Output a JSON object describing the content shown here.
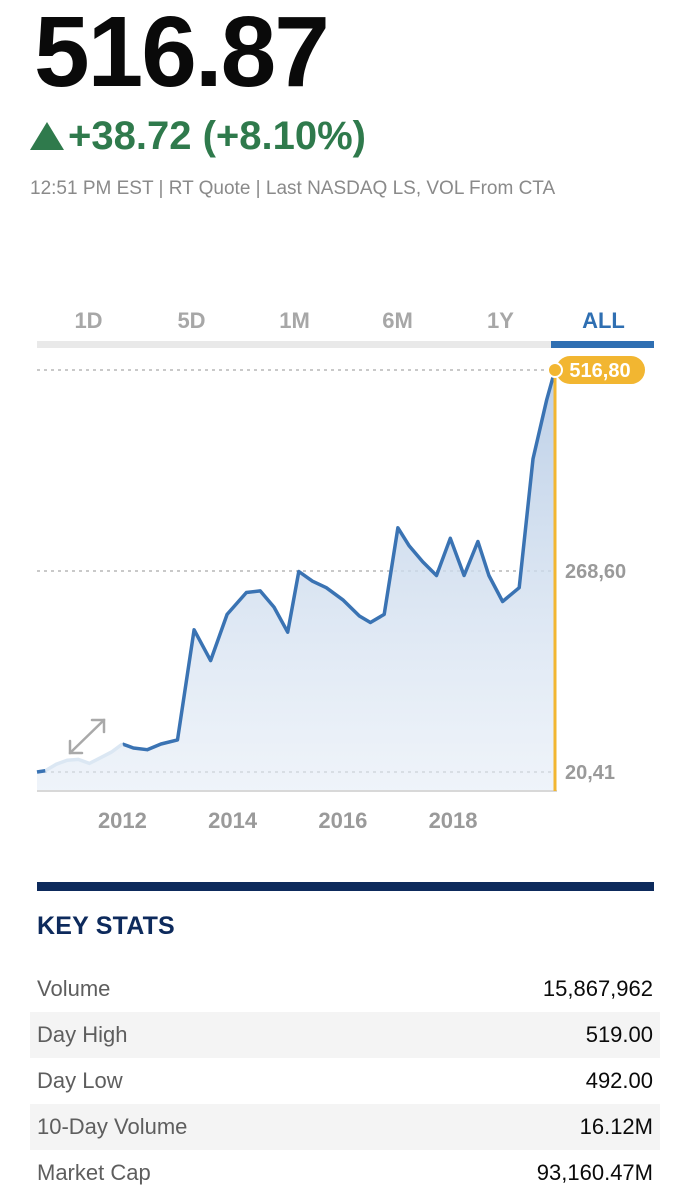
{
  "quote": {
    "price": "516.87",
    "change": "+38.72 (+8.10%)",
    "meta": "12:51 PM EST | RT Quote | Last NASDAQ LS, VOL From CTA"
  },
  "colors": {
    "up_green": "#2f7a4c",
    "accent_blue": "#2f6fb2",
    "line_blue": "#3a73b3",
    "marker_gold": "#f2b631",
    "navy": "#0d2a5c",
    "grid_gray": "#a9a9a9",
    "tick_gray": "#9a9a9a"
  },
  "icons": {
    "change_direction": "triangle-up-icon",
    "expand": "diagonal-arrows-icon"
  },
  "tabs": [
    {
      "label": "1D",
      "active": false
    },
    {
      "label": "5D",
      "active": false
    },
    {
      "label": "1M",
      "active": false
    },
    {
      "label": "6M",
      "active": false
    },
    {
      "label": "1Y",
      "active": false
    },
    {
      "label": "ALL",
      "active": true
    }
  ],
  "chart_data": {
    "type": "area",
    "x": [
      2010.45,
      2010.6,
      2010.8,
      2011.0,
      2011.2,
      2011.4,
      2011.6,
      2011.8,
      2012.0,
      2012.2,
      2012.45,
      2012.7,
      2013.0,
      2013.3,
      2013.6,
      2013.9,
      2014.25,
      2014.5,
      2014.75,
      2015.0,
      2015.2,
      2015.45,
      2015.7,
      2016.0,
      2016.3,
      2016.5,
      2016.75,
      2017.0,
      2017.2,
      2017.45,
      2017.7,
      2017.95,
      2018.2,
      2018.45,
      2018.65,
      2018.9,
      2019.2,
      2019.45,
      2019.7,
      2019.85
    ],
    "y": [
      20.41,
      22,
      30,
      35,
      36,
      31,
      38,
      45,
      55,
      50,
      48,
      55,
      60,
      196,
      158,
      215,
      242,
      244,
      224,
      193,
      268,
      256,
      248,
      233,
      213,
      205,
      215,
      322,
      300,
      280,
      263,
      309,
      263,
      305,
      263,
      231,
      248,
      407,
      480,
      516.8
    ],
    "x_ticks": [
      "2012",
      "2014",
      "2016",
      "2018"
    ],
    "x_tick_values": [
      2012,
      2014,
      2016,
      2018
    ],
    "y_ticks": [
      "20,41",
      "268,60"
    ],
    "y_tick_values": [
      20.41,
      268.6
    ],
    "current_label": "516,80",
    "current_value": 516.8,
    "xlim": [
      2010.45,
      2019.85
    ],
    "ylim": [
      20.41,
      516.8
    ],
    "grid": "dotted-horizontal-at-ticks",
    "legend": "none"
  },
  "key_stats": {
    "title": "KEY STATS",
    "rows": [
      {
        "label": "Volume",
        "value": "15,867,962"
      },
      {
        "label": "Day High",
        "value": "519.00"
      },
      {
        "label": "Day Low",
        "value": "492.00"
      },
      {
        "label": "10-Day Volume",
        "value": "16.12M"
      },
      {
        "label": "Market Cap",
        "value": "93,160.47M"
      }
    ]
  }
}
